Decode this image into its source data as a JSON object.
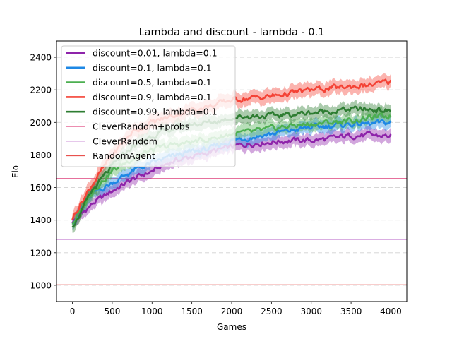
{
  "chart_data": {
    "type": "line",
    "title": "Lambda and discount - lambda - 0.1",
    "xlabel": "Games",
    "ylabel": "Elo",
    "xlim": [
      -200,
      4200
    ],
    "ylim": [
      900,
      2500
    ],
    "xticks": [
      0,
      500,
      1000,
      1500,
      2000,
      2500,
      3000,
      3500,
      4000
    ],
    "yticks": [
      1000,
      1200,
      1400,
      1600,
      1800,
      2000,
      2200,
      2400
    ],
    "grid": "horizontal dashed",
    "legend_position": "upper-left",
    "series": [
      {
        "name": "discount=0.01, lambda=0.1",
        "color": "#8e24aa",
        "band_width": 90,
        "x": [
          0,
          100,
          250,
          500,
          750,
          1000,
          1250,
          1500,
          1750,
          2000,
          2250,
          2500,
          2750,
          3000,
          3250,
          3500,
          3750,
          4000
        ],
        "y": [
          1390,
          1430,
          1500,
          1580,
          1650,
          1700,
          1760,
          1790,
          1820,
          1850,
          1870,
          1880,
          1890,
          1890,
          1900,
          1920,
          1920,
          1915
        ]
      },
      {
        "name": "discount=0.1, lambda=0.1",
        "color": "#1e88e5",
        "band_width": 90,
        "x": [
          0,
          100,
          250,
          500,
          750,
          1000,
          1250,
          1500,
          1750,
          2000,
          2250,
          2500,
          2750,
          3000,
          3250,
          3500,
          3750,
          4000
        ],
        "y": [
          1390,
          1460,
          1560,
          1630,
          1700,
          1750,
          1790,
          1820,
          1840,
          1890,
          1910,
          1930,
          1950,
          1970,
          1980,
          1990,
          1990,
          2000
        ]
      },
      {
        "name": "discount=0.5, lambda=0.1",
        "color": "#4caf50",
        "band_width": 90,
        "x": [
          0,
          100,
          250,
          500,
          750,
          1000,
          1250,
          1500,
          1750,
          2000,
          2250,
          2500,
          2750,
          3000,
          3250,
          3500,
          3750,
          4000
        ],
        "y": [
          1380,
          1450,
          1580,
          1700,
          1780,
          1830,
          1860,
          1880,
          1900,
          1930,
          1940,
          1960,
          1980,
          1990,
          2000,
          2010,
          2030,
          2040
        ]
      },
      {
        "name": "discount=0.9, lambda=0.1",
        "color": "#f44336",
        "band_width": 100,
        "x": [
          0,
          100,
          250,
          500,
          750,
          1000,
          1250,
          1500,
          1750,
          2000,
          2250,
          2500,
          2750,
          3000,
          3250,
          3500,
          3750,
          4000
        ],
        "y": [
          1410,
          1500,
          1620,
          1800,
          1940,
          2000,
          2040,
          2080,
          2100,
          2140,
          2150,
          2160,
          2180,
          2200,
          2210,
          2220,
          2230,
          2250
        ]
      },
      {
        "name": "discount=0.99, lambda=0.1",
        "color": "#2e7d32",
        "band_width": 90,
        "x": [
          0,
          100,
          250,
          500,
          750,
          1000,
          1250,
          1500,
          1750,
          2000,
          2250,
          2500,
          2750,
          3000,
          3250,
          3500,
          3750,
          4000
        ],
        "y": [
          1370,
          1440,
          1580,
          1730,
          1850,
          1920,
          1960,
          1990,
          2000,
          2030,
          2040,
          2040,
          2050,
          2060,
          2070,
          2080,
          2080,
          2070
        ]
      }
    ],
    "reference_lines": [
      {
        "name": "CleverRandom+probs",
        "color": "#d81b60",
        "y": 1655
      },
      {
        "name": "CleverRandom",
        "color": "#9c27b0",
        "y": 1282
      },
      {
        "name": "RandomAgent",
        "color": "#e53935",
        "y": 1003
      }
    ]
  }
}
